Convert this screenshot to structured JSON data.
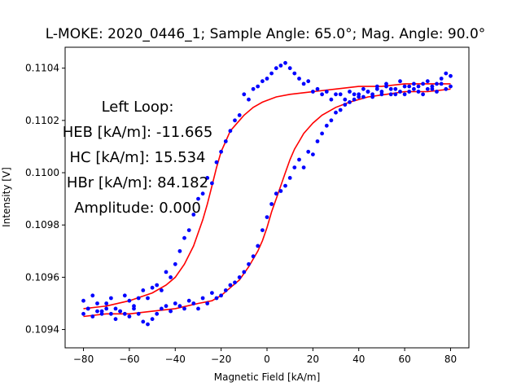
{
  "chart_data": {
    "type": "scatter",
    "title": "L-MOKE: 2020_0446_1; Sample Angle: 65.0°; Mag. Angle: 90.0°",
    "xlabel": "Magnetic Field [kA/m]",
    "ylabel": "Intensity [V]",
    "xlim": [
      -88,
      88
    ],
    "ylim": [
      0.10933,
      0.11048
    ],
    "x_ticks": [
      -80,
      -60,
      -40,
      -20,
      0,
      20,
      40,
      60,
      80
    ],
    "x_tick_labels": [
      "−80",
      "−60",
      "−40",
      "−20",
      "0",
      "20",
      "40",
      "60",
      "80"
    ],
    "y_ticks": [
      0.1094,
      0.1096,
      0.1098,
      0.11,
      0.1102,
      0.1104
    ],
    "y_tick_labels": [
      "0.1094",
      "0.1096",
      "0.1098",
      "0.1100",
      "0.1102",
      "0.1104"
    ],
    "grid": false,
    "annotation_lines": [
      "Left Loop:",
      "HEB [kA/m]: -11.665",
      "HC [kA/m]: 15.534",
      "HBr [kA/m]: 84.182",
      "Amplitude: 0.000"
    ],
    "series": [
      {
        "kind": "scatter",
        "color": "#0000ff",
        "note": "measured data (two branches of hysteresis loop)",
        "points": [
          [
            -80,
            0.10951
          ],
          [
            -78,
            0.10948
          ],
          [
            -76,
            0.10953
          ],
          [
            -74,
            0.1095
          ],
          [
            -72,
            0.10947
          ],
          [
            -70,
            0.1095
          ],
          [
            -68,
            0.10952
          ],
          [
            -66,
            0.10948
          ],
          [
            -64,
            0.10947
          ],
          [
            -62,
            0.10953
          ],
          [
            -60,
            0.10951
          ],
          [
            -58,
            0.10949
          ],
          [
            -56,
            0.10952
          ],
          [
            -54,
            0.10955
          ],
          [
            -52,
            0.10952
          ],
          [
            -50,
            0.10956
          ],
          [
            -48,
            0.10957
          ],
          [
            -46,
            0.10955
          ],
          [
            -44,
            0.10962
          ],
          [
            -42,
            0.1096
          ],
          [
            -40,
            0.10965
          ],
          [
            -38,
            0.1097
          ],
          [
            -36,
            0.10975
          ],
          [
            -34,
            0.10978
          ],
          [
            -32,
            0.10984
          ],
          [
            -30,
            0.1099
          ],
          [
            -28,
            0.10992
          ],
          [
            -26,
            0.10998
          ],
          [
            -24,
            0.10996
          ],
          [
            -22,
            0.11004
          ],
          [
            -20,
            0.11008
          ],
          [
            -18,
            0.11012
          ],
          [
            -16,
            0.11016
          ],
          [
            -14,
            0.1102
          ],
          [
            -12,
            0.11022
          ],
          [
            -10,
            0.1103
          ],
          [
            -8,
            0.11028
          ],
          [
            -6,
            0.11032
          ],
          [
            -4,
            0.11033
          ],
          [
            -2,
            0.11035
          ],
          [
            0,
            0.11036
          ],
          [
            2,
            0.11038
          ],
          [
            4,
            0.1104
          ],
          [
            6,
            0.11041
          ],
          [
            8,
            0.11042
          ],
          [
            10,
            0.1104
          ],
          [
            12,
            0.11038
          ],
          [
            14,
            0.11036
          ],
          [
            16,
            0.11034
          ],
          [
            18,
            0.11035
          ],
          [
            20,
            0.11031
          ],
          [
            22,
            0.11032
          ],
          [
            24,
            0.1103
          ],
          [
            26,
            0.11031
          ],
          [
            28,
            0.11028
          ],
          [
            30,
            0.1103
          ],
          [
            32,
            0.1103
          ],
          [
            34,
            0.11028
          ],
          [
            36,
            0.11031
          ],
          [
            38,
            0.1103
          ],
          [
            40,
            0.11029
          ],
          [
            42,
            0.11032
          ],
          [
            44,
            0.11031
          ],
          [
            46,
            0.11029
          ],
          [
            48,
            0.11033
          ],
          [
            50,
            0.1103
          ],
          [
            52,
            0.11034
          ],
          [
            54,
            0.11032
          ],
          [
            56,
            0.1103
          ],
          [
            58,
            0.11035
          ],
          [
            60,
            0.11033
          ],
          [
            62,
            0.11031
          ],
          [
            64,
            0.11034
          ],
          [
            66,
            0.11033
          ],
          [
            68,
            0.1103
          ],
          [
            70,
            0.11035
          ],
          [
            72,
            0.11032
          ],
          [
            74,
            0.11034
          ],
          [
            76,
            0.11036
          ],
          [
            78,
            0.11038
          ],
          [
            80,
            0.11037
          ],
          [
            -80,
            0.10946
          ],
          [
            -78,
            0.10948
          ],
          [
            -76,
            0.10945
          ],
          [
            -74,
            0.10947
          ],
          [
            -72,
            0.10946
          ],
          [
            -70,
            0.10948
          ],
          [
            -68,
            0.10946
          ],
          [
            -66,
            0.10944
          ],
          [
            -64,
            0.10947
          ],
          [
            -62,
            0.10946
          ],
          [
            -60,
            0.10945
          ],
          [
            -58,
            0.10948
          ],
          [
            -56,
            0.10946
          ],
          [
            -54,
            0.10943
          ],
          [
            -52,
            0.10942
          ],
          [
            -50,
            0.10944
          ],
          [
            -48,
            0.10946
          ],
          [
            -46,
            0.10948
          ],
          [
            -44,
            0.10949
          ],
          [
            -42,
            0.10947
          ],
          [
            -40,
            0.1095
          ],
          [
            -38,
            0.10949
          ],
          [
            -36,
            0.10948
          ],
          [
            -34,
            0.10951
          ],
          [
            -32,
            0.1095
          ],
          [
            -30,
            0.10948
          ],
          [
            -28,
            0.10952
          ],
          [
            -26,
            0.1095
          ],
          [
            -24,
            0.10954
          ],
          [
            -22,
            0.10952
          ],
          [
            -20,
            0.10953
          ],
          [
            -18,
            0.10955
          ],
          [
            -16,
            0.10957
          ],
          [
            -14,
            0.10958
          ],
          [
            -12,
            0.1096
          ],
          [
            -10,
            0.10962
          ],
          [
            -8,
            0.10965
          ],
          [
            -6,
            0.10968
          ],
          [
            -4,
            0.10972
          ],
          [
            -2,
            0.10978
          ],
          [
            0,
            0.10983
          ],
          [
            2,
            0.10988
          ],
          [
            4,
            0.10992
          ],
          [
            6,
            0.10993
          ],
          [
            8,
            0.10995
          ],
          [
            10,
            0.10998
          ],
          [
            12,
            0.11002
          ],
          [
            14,
            0.11005
          ],
          [
            16,
            0.11002
          ],
          [
            18,
            0.11008
          ],
          [
            20,
            0.11007
          ],
          [
            22,
            0.11012
          ],
          [
            24,
            0.11015
          ],
          [
            26,
            0.11018
          ],
          [
            28,
            0.1102
          ],
          [
            30,
            0.11023
          ],
          [
            32,
            0.11024
          ],
          [
            34,
            0.11026
          ],
          [
            36,
            0.11027
          ],
          [
            38,
            0.11028
          ],
          [
            40,
            0.1103
          ],
          [
            42,
            0.11029
          ],
          [
            44,
            0.11031
          ],
          [
            46,
            0.1103
          ],
          [
            48,
            0.11032
          ],
          [
            50,
            0.11031
          ],
          [
            52,
            0.11033
          ],
          [
            54,
            0.1103
          ],
          [
            56,
            0.11032
          ],
          [
            58,
            0.11031
          ],
          [
            60,
            0.1103
          ],
          [
            62,
            0.11033
          ],
          [
            64,
            0.11032
          ],
          [
            66,
            0.11031
          ],
          [
            68,
            0.11034
          ],
          [
            70,
            0.11032
          ],
          [
            72,
            0.11033
          ],
          [
            74,
            0.11031
          ],
          [
            76,
            0.11034
          ],
          [
            78,
            0.11032
          ],
          [
            80,
            0.11033
          ]
        ]
      },
      {
        "kind": "line",
        "color": "#ff0000",
        "note": "fit curves (upper/lower branch)",
        "points": [
          [
            -80,
            0.10948
          ],
          [
            -70,
            0.10949
          ],
          [
            -60,
            0.10951
          ],
          [
            -50,
            0.10954
          ],
          [
            -44,
            0.10957
          ],
          [
            -40,
            0.1096
          ],
          [
            -36,
            0.10965
          ],
          [
            -32,
            0.10972
          ],
          [
            -28,
            0.10982
          ],
          [
            -26,
            0.10988
          ],
          [
            -24,
            0.10995
          ],
          [
            -22,
            0.11002
          ],
          [
            -20,
            0.11008
          ],
          [
            -18,
            0.11012
          ],
          [
            -16,
            0.11016
          ],
          [
            -14,
            0.11018
          ],
          [
            -12,
            0.1102
          ],
          [
            -10,
            0.11022
          ],
          [
            -6,
            0.11025
          ],
          [
            -2,
            0.11027
          ],
          [
            4,
            0.11029
          ],
          [
            10,
            0.1103
          ],
          [
            20,
            0.11031
          ],
          [
            30,
            0.11032
          ],
          [
            40,
            0.11033
          ],
          [
            50,
            0.11033
          ],
          [
            60,
            0.11034
          ],
          [
            70,
            0.11034
          ],
          [
            80,
            0.11034
          ]
        ]
      },
      {
        "kind": "line",
        "color": "#ff0000",
        "points": [
          [
            -80,
            0.10945
          ],
          [
            -70,
            0.10946
          ],
          [
            -60,
            0.10946
          ],
          [
            -50,
            0.10947
          ],
          [
            -40,
            0.10948
          ],
          [
            -30,
            0.1095
          ],
          [
            -24,
            0.10951
          ],
          [
            -20,
            0.10953
          ],
          [
            -16,
            0.10956
          ],
          [
            -12,
            0.10959
          ],
          [
            -8,
            0.10964
          ],
          [
            -4,
            0.1097
          ],
          [
            -2,
            0.10974
          ],
          [
            0,
            0.10979
          ],
          [
            2,
            0.10985
          ],
          [
            4,
            0.1099
          ],
          [
            6,
            0.10995
          ],
          [
            8,
            0.11
          ],
          [
            10,
            0.11005
          ],
          [
            12,
            0.11009
          ],
          [
            14,
            0.11012
          ],
          [
            16,
            0.11015
          ],
          [
            18,
            0.11017
          ],
          [
            20,
            0.11019
          ],
          [
            24,
            0.11022
          ],
          [
            30,
            0.11025
          ],
          [
            36,
            0.11027
          ],
          [
            44,
            0.11029
          ],
          [
            52,
            0.1103
          ],
          [
            60,
            0.11031
          ],
          [
            70,
            0.11031
          ],
          [
            80,
            0.11032
          ]
        ]
      }
    ]
  }
}
